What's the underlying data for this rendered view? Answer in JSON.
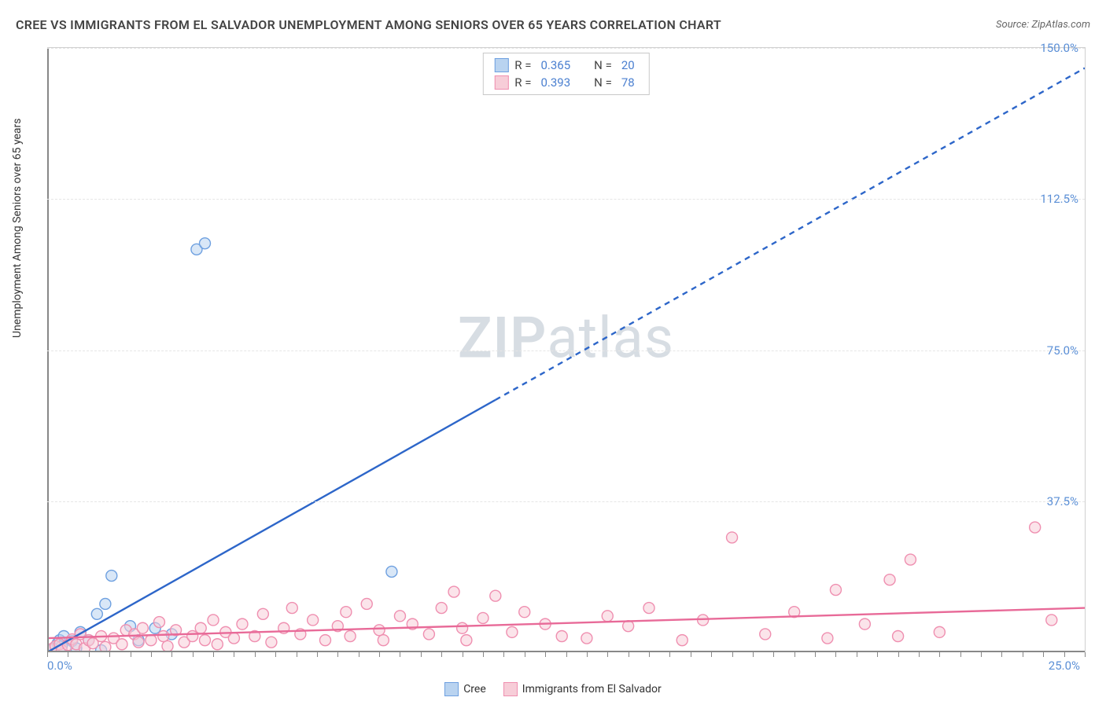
{
  "header": {
    "title": "CREE VS IMMIGRANTS FROM EL SALVADOR UNEMPLOYMENT AMONG SENIORS OVER 65 YEARS CORRELATION CHART",
    "source_prefix": "Source: ",
    "source_name": "ZipAtlas.com"
  },
  "watermark": {
    "zip": "ZIP",
    "atlas": "atlas"
  },
  "chart": {
    "type": "scatter",
    "y_label": "Unemployment Among Seniors over 65 years",
    "background_color": "#ffffff",
    "grid_color": "#e5e5e5",
    "axis_color": "#888888",
    "tick_label_color": "#5b8fd6",
    "xlim": [
      0,
      25
    ],
    "ylim": [
      0,
      150
    ],
    "x_origin_label": "0.0%",
    "x_max_label": "25.0%",
    "y_ticks": [
      {
        "v": 37.5,
        "label": "37.5%"
      },
      {
        "v": 75.0,
        "label": "75.0%"
      },
      {
        "v": 112.5,
        "label": "112.5%"
      },
      {
        "v": 150.0,
        "label": "150.0%"
      }
    ],
    "x_tick_step": 0.5,
    "marker_radius": 7,
    "marker_stroke_width": 1.4,
    "series": [
      {
        "key": "cree",
        "label": "Cree",
        "fill": "#b9d3f0",
        "stroke": "#6ea0e0",
        "line_color": "#2d66c9",
        "R_label": "R =",
        "R": "0.365",
        "N_label": "N =",
        "N": "20",
        "trend": {
          "x1": 0,
          "y1": 0,
          "x2": 25,
          "y2": 145,
          "solid_until_x": 10.8,
          "stroke_width": 2.4,
          "dash": "7 6"
        },
        "points": [
          [
            0.15,
            1.0
          ],
          [
            0.25,
            2.2
          ],
          [
            0.3,
            3.0
          ],
          [
            0.35,
            1.5
          ],
          [
            0.4,
            4.0
          ],
          [
            0.6,
            2.8
          ],
          [
            0.8,
            5.0
          ],
          [
            0.7,
            1.0
          ],
          [
            1.0,
            3.0
          ],
          [
            1.2,
            9.5
          ],
          [
            1.4,
            12.0
          ],
          [
            1.55,
            19.0
          ],
          [
            1.3,
            0.5
          ],
          [
            2.0,
            6.5
          ],
          [
            2.2,
            3.0
          ],
          [
            2.6,
            6.0
          ],
          [
            3.0,
            4.5
          ],
          [
            3.6,
            100.0
          ],
          [
            3.8,
            101.5
          ],
          [
            8.3,
            20.0
          ]
        ]
      },
      {
        "key": "elsalvador",
        "label": "Immigrants from El Salvador",
        "fill": "#f7cdd8",
        "stroke": "#ef8fb0",
        "line_color": "#e86a98",
        "R_label": "R =",
        "R": "0.393",
        "N_label": "N =",
        "N": "78",
        "trend": {
          "x1": 0,
          "y1": 3.5,
          "x2": 25,
          "y2": 11.0,
          "solid_until_x": 25,
          "stroke_width": 2.4,
          "dash": ""
        },
        "points": [
          [
            0.1,
            0.8
          ],
          [
            0.2,
            1.5
          ],
          [
            0.3,
            2.0
          ],
          [
            0.35,
            0.5
          ],
          [
            0.5,
            1.8
          ],
          [
            0.6,
            3.2
          ],
          [
            0.7,
            2.0
          ],
          [
            0.8,
            4.5
          ],
          [
            0.9,
            1.0
          ],
          [
            1.0,
            3.0
          ],
          [
            1.1,
            2.2
          ],
          [
            1.3,
            4.0
          ],
          [
            1.4,
            1.3
          ],
          [
            1.6,
            3.5
          ],
          [
            1.8,
            2.0
          ],
          [
            1.9,
            5.5
          ],
          [
            2.1,
            4.5
          ],
          [
            2.2,
            2.5
          ],
          [
            2.3,
            6.0
          ],
          [
            2.5,
            3.0
          ],
          [
            2.7,
            7.5
          ],
          [
            2.8,
            4.0
          ],
          [
            2.9,
            1.5
          ],
          [
            3.1,
            5.5
          ],
          [
            3.3,
            2.5
          ],
          [
            3.5,
            4.0
          ],
          [
            3.7,
            6.0
          ],
          [
            3.8,
            3.0
          ],
          [
            4.0,
            8.0
          ],
          [
            4.1,
            2.0
          ],
          [
            4.3,
            5.0
          ],
          [
            4.5,
            3.5
          ],
          [
            4.7,
            7.0
          ],
          [
            5.0,
            4.0
          ],
          [
            5.2,
            9.5
          ],
          [
            5.4,
            2.5
          ],
          [
            5.7,
            6.0
          ],
          [
            5.9,
            11.0
          ],
          [
            6.1,
            4.5
          ],
          [
            6.4,
            8.0
          ],
          [
            6.7,
            3.0
          ],
          [
            7.0,
            6.5
          ],
          [
            7.2,
            10.0
          ],
          [
            7.3,
            4.0
          ],
          [
            7.7,
            12.0
          ],
          [
            8.0,
            5.5
          ],
          [
            8.1,
            3.0
          ],
          [
            8.5,
            9.0
          ],
          [
            8.8,
            7.0
          ],
          [
            9.2,
            4.5
          ],
          [
            9.5,
            11.0
          ],
          [
            9.8,
            15.0
          ],
          [
            10.0,
            6.0
          ],
          [
            10.1,
            3.0
          ],
          [
            10.5,
            8.5
          ],
          [
            10.8,
            14.0
          ],
          [
            11.2,
            5.0
          ],
          [
            11.5,
            10.0
          ],
          [
            12.0,
            7.0
          ],
          [
            12.4,
            4.0
          ],
          [
            13.0,
            3.5
          ],
          [
            13.5,
            9.0
          ],
          [
            14.0,
            6.5
          ],
          [
            14.5,
            11.0
          ],
          [
            15.3,
            3.0
          ],
          [
            15.8,
            8.0
          ],
          [
            16.5,
            28.5
          ],
          [
            17.3,
            4.5
          ],
          [
            18.0,
            10.0
          ],
          [
            18.8,
            3.5
          ],
          [
            19.0,
            15.5
          ],
          [
            19.7,
            7.0
          ],
          [
            20.3,
            18.0
          ],
          [
            20.5,
            4.0
          ],
          [
            20.8,
            23.0
          ],
          [
            21.5,
            5.0
          ],
          [
            23.8,
            31.0
          ],
          [
            24.2,
            8.0
          ]
        ]
      }
    ]
  }
}
